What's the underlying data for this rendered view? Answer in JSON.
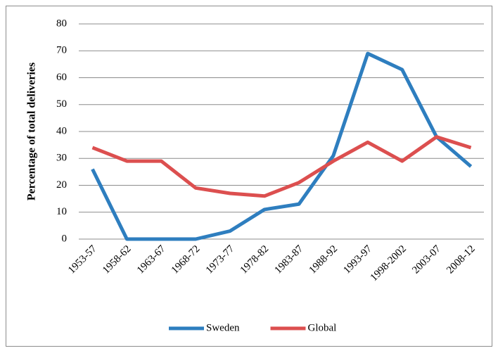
{
  "chart_data": {
    "type": "line",
    "y_axis_label": "Percentage of total deliveries",
    "categories": [
      "1953-57",
      "1958-62",
      "1963-67",
      "1968-72",
      "1973-77",
      "1978-82",
      "1983-87",
      "1988-92",
      "1993-97",
      "1998-2002",
      "2003-07",
      "2008-12"
    ],
    "series": [
      {
        "name": "Sweden",
        "color": "#2e7ebf",
        "values": [
          26,
          0,
          0,
          0,
          3,
          11,
          13,
          31,
          69,
          63,
          38,
          27
        ]
      },
      {
        "name": "Global",
        "color": "#dc4f4f",
        "values": [
          34,
          29,
          29,
          19,
          17,
          16,
          21,
          29,
          36,
          29,
          38,
          34
        ]
      }
    ],
    "ylim": [
      0,
      80
    ],
    "yticks": [
      0,
      10,
      20,
      30,
      40,
      50,
      60,
      70,
      80
    ],
    "grid": true,
    "legend": "bottom"
  }
}
